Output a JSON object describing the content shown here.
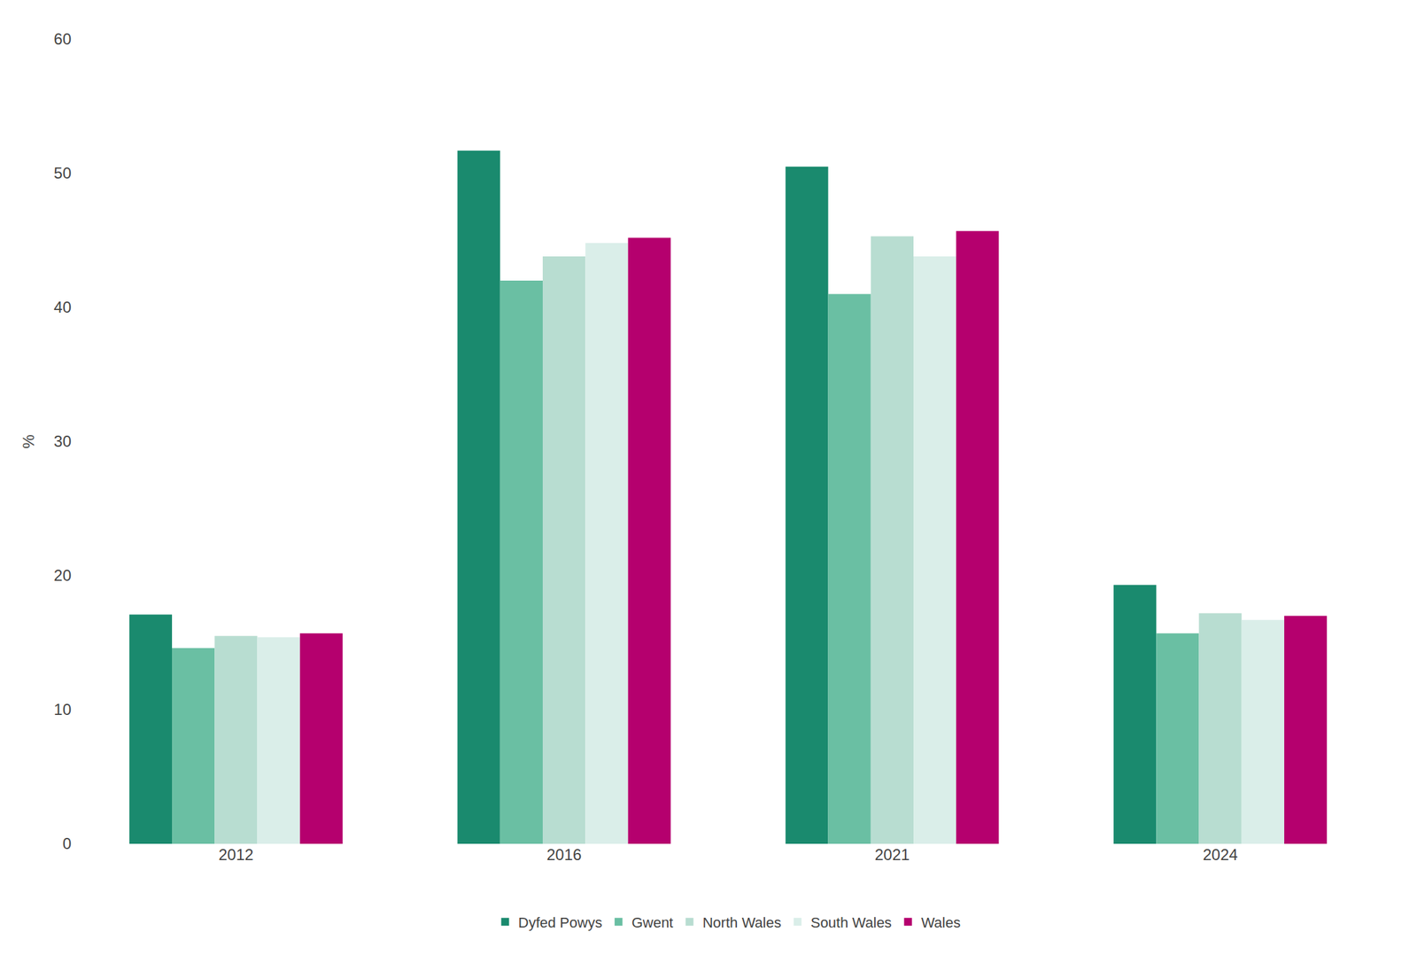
{
  "chart_data": {
    "type": "bar",
    "categories": [
      "2012",
      "2016",
      "2021",
      "2024"
    ],
    "series": [
      {
        "name": "Dyfed Powys",
        "color": "#1a8a6e",
        "values": [
          17.1,
          51.7,
          50.5,
          19.3
        ]
      },
      {
        "name": "Gwent",
        "color": "#6abfa3",
        "values": [
          14.6,
          42.0,
          41.0,
          15.7
        ]
      },
      {
        "name": "North Wales",
        "color": "#b8ddd1",
        "values": [
          15.5,
          43.8,
          45.3,
          17.2
        ]
      },
      {
        "name": "South Wales",
        "color": "#daeee9",
        "values": [
          15.4,
          44.8,
          43.8,
          16.7
        ]
      },
      {
        "name": "Wales",
        "color": "#b5006e",
        "values": [
          15.7,
          45.2,
          45.7,
          17.0
        ]
      }
    ],
    "ylabel": "%",
    "ylim": [
      0,
      60
    ],
    "yticks": [
      0,
      10,
      20,
      30,
      40,
      50,
      60
    ],
    "grid": false,
    "legend": "bottom"
  }
}
